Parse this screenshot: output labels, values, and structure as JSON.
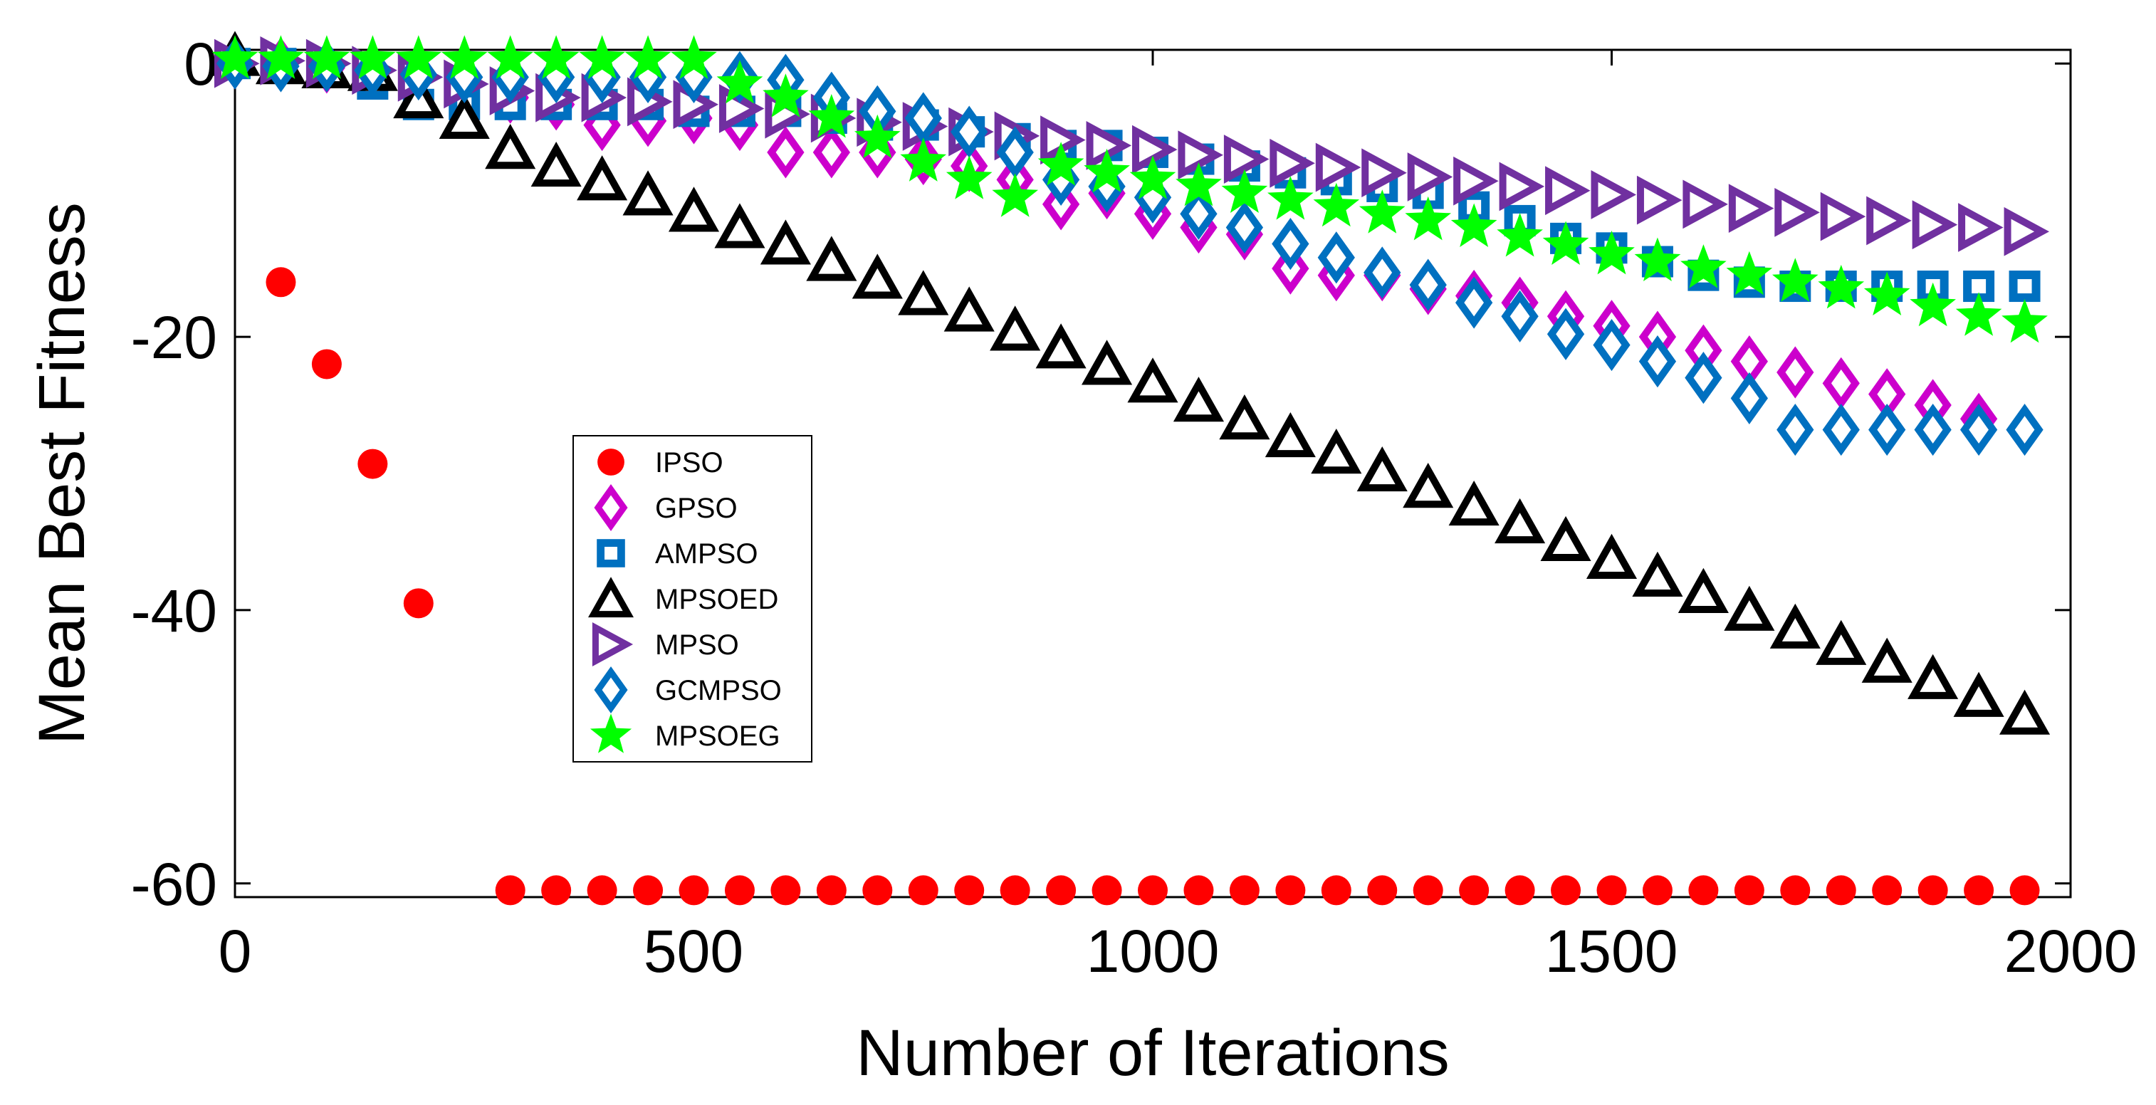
{
  "chart_data": {
    "type": "scatter",
    "title": "",
    "xlabel": "Number of Iterations",
    "ylabel": "Mean Best Fitness",
    "xlim": [
      0,
      2000
    ],
    "ylim": [
      -61,
      1
    ],
    "xticks": [
      0,
      500,
      1000,
      1500,
      2000
    ],
    "xtick_labels": [
      "0",
      "500",
      "1000",
      "1500",
      "2000"
    ],
    "yticks": [
      0,
      -20,
      -40,
      -60
    ],
    "ytick_labels": [
      "0",
      "-20",
      "-40",
      "-60"
    ],
    "grid": false,
    "legend_position": "center-left",
    "series": [
      {
        "name": "IPSO",
        "marker": "circle",
        "color": "#ff0000",
        "x": [
          0,
          50,
          100,
          150,
          200,
          300,
          350,
          400,
          450,
          500,
          550,
          600,
          650,
          700,
          750,
          800,
          850,
          900,
          950,
          1000,
          1050,
          1100,
          1150,
          1200,
          1250,
          1300,
          1350,
          1400,
          1450,
          1500,
          1550,
          1600,
          1650,
          1700,
          1750,
          1800,
          1850,
          1900,
          1950
        ],
        "y": [
          0,
          -16,
          -22,
          -29.3,
          -39.5,
          -60.5,
          -60.5,
          -60.5,
          -60.5,
          -60.5,
          -60.5,
          -60.5,
          -60.5,
          -60.5,
          -60.5,
          -60.5,
          -60.5,
          -60.5,
          -60.5,
          -60.5,
          -60.5,
          -60.5,
          -60.5,
          -60.5,
          -60.5,
          -60.5,
          -60.5,
          -60.5,
          -60.5,
          -60.5,
          -60.5,
          -60.5,
          -60.5,
          -60.5,
          -60.5,
          -60.5,
          -60.5,
          -60.5,
          -60.5
        ]
      },
      {
        "name": "GPSO",
        "marker": "diamond",
        "color": "#cc00cc",
        "x": [
          0,
          50,
          100,
          150,
          200,
          250,
          300,
          350,
          400,
          450,
          500,
          550,
          600,
          650,
          700,
          750,
          800,
          850,
          900,
          950,
          1000,
          1050,
          1100,
          1150,
          1200,
          1250,
          1300,
          1350,
          1400,
          1450,
          1500,
          1550,
          1600,
          1650,
          1700,
          1750,
          1800,
          1850,
          1900
        ],
        "y": [
          0,
          0,
          -0.3,
          -0.5,
          -0.8,
          -1.5,
          -2.5,
          -3,
          -4.5,
          -4.2,
          -4,
          -4.5,
          -6.5,
          -6.5,
          -6.5,
          -7,
          -7.5,
          -8.5,
          -10.3,
          -9.5,
          -11,
          -12,
          -12.5,
          -15,
          -15.5,
          -15.5,
          -16.5,
          -17,
          -17.5,
          -18.5,
          -19.2,
          -20,
          -21,
          -21.8,
          -22.6,
          -23.4,
          -24.2,
          -25,
          -26
        ]
      },
      {
        "name": "AMPSO",
        "marker": "square",
        "color": "#0070c0",
        "x": [
          0,
          50,
          100,
          150,
          200,
          250,
          300,
          350,
          400,
          450,
          500,
          550,
          600,
          650,
          700,
          750,
          800,
          850,
          900,
          950,
          1000,
          1050,
          1100,
          1150,
          1200,
          1250,
          1300,
          1350,
          1400,
          1450,
          1500,
          1550,
          1600,
          1650,
          1700,
          1750,
          1800,
          1850,
          1900,
          1950
        ],
        "y": [
          0,
          0,
          -0.5,
          -1.5,
          -3,
          -3,
          -3,
          -3,
          -3,
          -3,
          -3.5,
          -3.5,
          -3.5,
          -4,
          -4.5,
          -4.5,
          -5,
          -5.5,
          -6,
          -6,
          -6.5,
          -7,
          -7.5,
          -8,
          -8.5,
          -9,
          -9.5,
          -10.5,
          -11.5,
          -12.8,
          -13.5,
          -14.5,
          -15.5,
          -16,
          -16.3,
          -16.3,
          -16.3,
          -16.3,
          -16.3,
          -16.3
        ]
      },
      {
        "name": "MPSOED",
        "marker": "triangle-up",
        "color": "#000000",
        "x": [
          0,
          50,
          100,
          150,
          200,
          250,
          300,
          350,
          400,
          450,
          500,
          550,
          600,
          650,
          700,
          750,
          800,
          850,
          900,
          950,
          1000,
          1050,
          1100,
          1150,
          1200,
          1250,
          1300,
          1350,
          1400,
          1450,
          1500,
          1550,
          1600,
          1650,
          1700,
          1750,
          1800,
          1850,
          1900,
          1950
        ],
        "y": [
          0.6,
          0,
          -0.3,
          -0.5,
          -2.5,
          -4,
          -6.2,
          -7.5,
          -8.5,
          -9.6,
          -10.8,
          -12,
          -13.2,
          -14.4,
          -15.7,
          -16.9,
          -18.1,
          -19.5,
          -20.8,
          -22,
          -23.3,
          -24.7,
          -26,
          -27.3,
          -28.5,
          -29.8,
          -31,
          -32.3,
          -33.6,
          -34.9,
          -36.2,
          -37.5,
          -38.7,
          -40,
          -41.3,
          -42.5,
          -43.8,
          -45,
          -46.3,
          -47.6
        ]
      },
      {
        "name": "MPSO",
        "marker": "triangle-right",
        "color": "#7030a0",
        "x": [
          0,
          50,
          100,
          150,
          200,
          250,
          300,
          350,
          400,
          450,
          500,
          550,
          600,
          650,
          700,
          750,
          800,
          850,
          900,
          950,
          1000,
          1050,
          1100,
          1150,
          1200,
          1250,
          1300,
          1350,
          1400,
          1450,
          1500,
          1550,
          1600,
          1650,
          1700,
          1750,
          1800,
          1850,
          1900,
          1950
        ],
        "y": [
          0,
          0.2,
          0,
          -0.5,
          -1,
          -1.5,
          -2,
          -2.5,
          -2.5,
          -2.8,
          -3,
          -3.3,
          -3.7,
          -4,
          -4.3,
          -4.6,
          -5,
          -5.3,
          -5.6,
          -6,
          -6.3,
          -6.7,
          -7,
          -7.3,
          -7.6,
          -8,
          -8.3,
          -8.6,
          -9,
          -9.3,
          -9.6,
          -10,
          -10.3,
          -10.6,
          -10.9,
          -11.2,
          -11.5,
          -11.8,
          -12,
          -12.3
        ]
      },
      {
        "name": "GCMPSO",
        "marker": "diamond",
        "color": "#0070c0",
        "x": [
          0,
          50,
          100,
          150,
          200,
          250,
          300,
          350,
          400,
          450,
          500,
          550,
          600,
          650,
          700,
          750,
          800,
          850,
          900,
          950,
          1000,
          1050,
          1100,
          1150,
          1200,
          1250,
          1300,
          1350,
          1400,
          1450,
          1500,
          1550,
          1600,
          1650,
          1700,
          1750,
          1800,
          1850,
          1900,
          1950
        ],
        "y": [
          0,
          -0.2,
          -0.2,
          -0.5,
          -0.8,
          -1,
          -1,
          -1,
          -1,
          -1,
          -1,
          -1,
          -1.2,
          -2.5,
          -3.5,
          -4,
          -5,
          -6.5,
          -8.5,
          -9,
          -9.8,
          -11,
          -12,
          -13.2,
          -14.2,
          -15.3,
          -16.2,
          -17.5,
          -18.5,
          -19.8,
          -20.6,
          -21.8,
          -23,
          -24.5,
          -26.8,
          -26.8,
          -26.8,
          -26.8,
          -26.8,
          -26.8
        ]
      },
      {
        "name": "MPSOEG",
        "marker": "star",
        "color": "#00ff00",
        "x": [
          0,
          50,
          100,
          150,
          200,
          250,
          300,
          350,
          400,
          450,
          500,
          550,
          600,
          650,
          700,
          750,
          800,
          850,
          900,
          950,
          1000,
          1050,
          1100,
          1150,
          1200,
          1250,
          1300,
          1350,
          1400,
          1450,
          1500,
          1550,
          1600,
          1650,
          1700,
          1750,
          1800,
          1850,
          1900,
          1950
        ],
        "y": [
          0.3,
          0.3,
          0.3,
          0.3,
          0.3,
          0.3,
          0.3,
          0.3,
          0.3,
          0.3,
          0.3,
          -1.5,
          -2.5,
          -4,
          -5.5,
          -7.2,
          -8.5,
          -9.8,
          -7.5,
          -8,
          -8.5,
          -9,
          -9.5,
          -10,
          -10.5,
          -11,
          -11.5,
          -12,
          -12.7,
          -13.3,
          -14,
          -14.5,
          -15,
          -15.5,
          -16,
          -16.5,
          -17,
          -17.8,
          -18.5,
          -19
        ]
      }
    ]
  }
}
